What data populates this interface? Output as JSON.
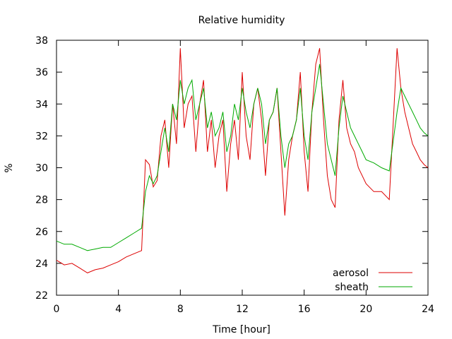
{
  "chart_data": {
    "type": "line",
    "title": "Relative humidity",
    "xlabel": "Time [hour]",
    "ylabel": "%",
    "xlim": [
      0,
      24
    ],
    "ylim": [
      22,
      38
    ],
    "xticks": [
      0,
      4,
      8,
      12,
      16,
      20,
      24
    ],
    "yticks": [
      22,
      24,
      26,
      28,
      30,
      32,
      34,
      36,
      38
    ],
    "x": [
      0,
      0.5,
      1,
      1.5,
      2,
      2.5,
      3,
      3.5,
      4,
      4.5,
      5,
      5.5,
      5.75,
      6,
      6.25,
      6.5,
      6.75,
      7,
      7.25,
      7.5,
      7.75,
      8,
      8.25,
      8.5,
      8.75,
      9,
      9.25,
      9.5,
      9.75,
      10,
      10.25,
      10.5,
      10.75,
      11,
      11.25,
      11.5,
      11.75,
      12,
      12.25,
      12.5,
      12.75,
      13,
      13.25,
      13.5,
      13.75,
      14,
      14.25,
      14.5,
      14.75,
      15,
      15.25,
      15.5,
      15.75,
      16,
      16.25,
      16.5,
      16.75,
      17,
      17.25,
      17.5,
      17.75,
      18,
      18.25,
      18.5,
      18.75,
      19,
      19.25,
      19.5,
      19.75,
      20,
      20.5,
      21,
      21.5,
      22,
      22.25,
      22.5,
      22.75,
      23,
      23.25,
      23.5,
      23.75,
      24
    ],
    "series": [
      {
        "name": "aerosol",
        "color": "#dd0000",
        "values": [
          24.2,
          23.9,
          24.0,
          23.7,
          23.4,
          23.6,
          23.7,
          23.9,
          24.1,
          24.4,
          24.6,
          24.8,
          30.5,
          30.2,
          28.8,
          29.2,
          32.0,
          33.0,
          30.0,
          34.0,
          31.5,
          37.5,
          32.5,
          34.0,
          34.5,
          31.0,
          34.0,
          35.5,
          31.0,
          33.0,
          30.0,
          32.0,
          33.0,
          28.5,
          31.5,
          33.0,
          30.5,
          36.0,
          32.0,
          30.5,
          34.0,
          35.0,
          33.0,
          29.5,
          33.0,
          33.5,
          35.0,
          31.0,
          27.0,
          30.5,
          32.0,
          33.0,
          36.0,
          31.0,
          28.5,
          33.5,
          36.5,
          37.5,
          33.0,
          29.5,
          28.0,
          27.5,
          33.0,
          35.5,
          32.5,
          31.5,
          31.0,
          30.0,
          29.5,
          29.0,
          28.5,
          28.5,
          28.0,
          37.5,
          35.0,
          33.5,
          32.5,
          31.5,
          31.0,
          30.5,
          30.2,
          30.0
        ]
      },
      {
        "name": "sheath",
        "color": "#00aa00",
        "values": [
          25.4,
          25.2,
          25.2,
          25.0,
          24.8,
          24.9,
          25.0,
          25.0,
          25.3,
          25.6,
          25.9,
          26.2,
          28.5,
          29.5,
          29.0,
          29.5,
          31.0,
          32.5,
          31.0,
          34.0,
          33.0,
          35.5,
          34.0,
          35.0,
          35.5,
          33.0,
          34.0,
          35.0,
          32.5,
          33.5,
          32.0,
          32.5,
          33.5,
          31.0,
          32.0,
          34.0,
          33.0,
          35.0,
          33.5,
          32.5,
          34.0,
          35.0,
          34.0,
          31.5,
          33.0,
          33.5,
          35.0,
          32.0,
          30.0,
          31.5,
          32.0,
          33.0,
          35.0,
          32.0,
          30.5,
          33.5,
          35.0,
          36.5,
          34.0,
          31.5,
          30.5,
          29.5,
          32.5,
          34.5,
          33.5,
          32.5,
          32.0,
          31.5,
          31.0,
          30.5,
          30.3,
          30.0,
          29.8,
          33.5,
          35.0,
          34.5,
          34.0,
          33.5,
          33.0,
          32.5,
          32.2,
          32.0
        ]
      }
    ],
    "legend": "bottom-right",
    "grid": false
  }
}
